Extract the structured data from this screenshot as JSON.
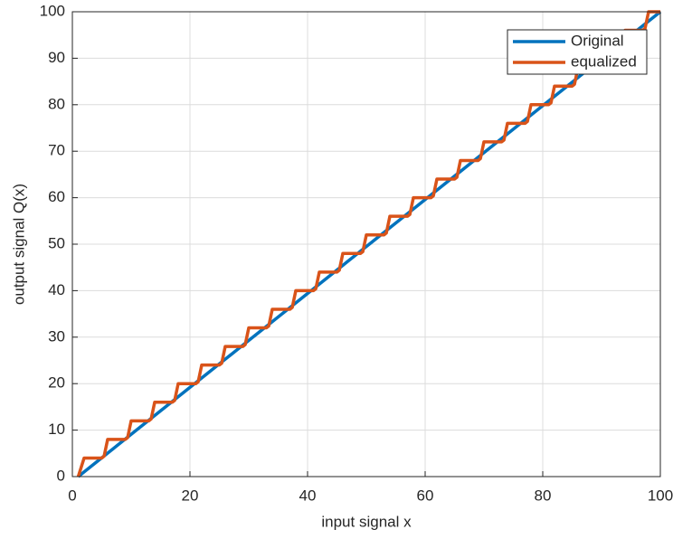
{
  "chart_data": {
    "type": "line",
    "xlabel": "input signal x",
    "ylabel": "output signal Q(x)",
    "xlim": [
      0,
      100
    ],
    "xticks": [
      0,
      20,
      40,
      60,
      80,
      100
    ],
    "ylim": [
      0,
      100
    ],
    "yticks": [
      0,
      10,
      20,
      30,
      40,
      50,
      60,
      70,
      80,
      90,
      100
    ],
    "grid": true,
    "legend": "upper right",
    "series": [
      {
        "name": "Original",
        "color": "#0072BD",
        "x": [
          1,
          100
        ],
        "values": [
          0,
          100
        ]
      },
      {
        "name": "equalized",
        "color": "#D95319",
        "x": [
          1,
          2,
          5,
          5.4,
          6,
          9,
          9.4,
          10,
          13,
          13.4,
          14,
          17,
          17.4,
          18,
          21,
          21.4,
          22,
          25,
          25.4,
          26,
          29,
          29.4,
          30,
          33,
          33.4,
          34,
          37,
          37.4,
          38,
          41,
          41.4,
          42,
          45,
          45.4,
          46,
          49,
          49.4,
          50,
          53,
          53.4,
          54,
          57,
          57.4,
          58,
          61,
          61.4,
          62,
          65,
          65.4,
          66,
          69,
          69.4,
          70,
          73,
          73.4,
          74,
          77,
          77.4,
          78,
          81,
          81.4,
          82,
          85,
          85.4,
          86,
          89,
          89.4,
          90,
          93,
          93.4,
          94,
          97,
          97.4,
          98,
          100
        ],
        "values": [
          0,
          4,
          4,
          4.4,
          8,
          8,
          8.4,
          12,
          12,
          12.4,
          16,
          16,
          16.4,
          20,
          20,
          20.4,
          24,
          24,
          24.4,
          28,
          28,
          28.4,
          32,
          32,
          32.4,
          36,
          36,
          36.4,
          40,
          40,
          40.4,
          44,
          44,
          44.4,
          48,
          48,
          48.4,
          52,
          52,
          52.4,
          56,
          56,
          56.4,
          60,
          60,
          60.4,
          64,
          64,
          64.4,
          68,
          68,
          68.4,
          72,
          72,
          72.4,
          76,
          76,
          76.4,
          80,
          80,
          80.4,
          84,
          84,
          84.4,
          88,
          88,
          88.4,
          92,
          92,
          92.4,
          96,
          96,
          96.4,
          100,
          100
        ]
      }
    ]
  }
}
